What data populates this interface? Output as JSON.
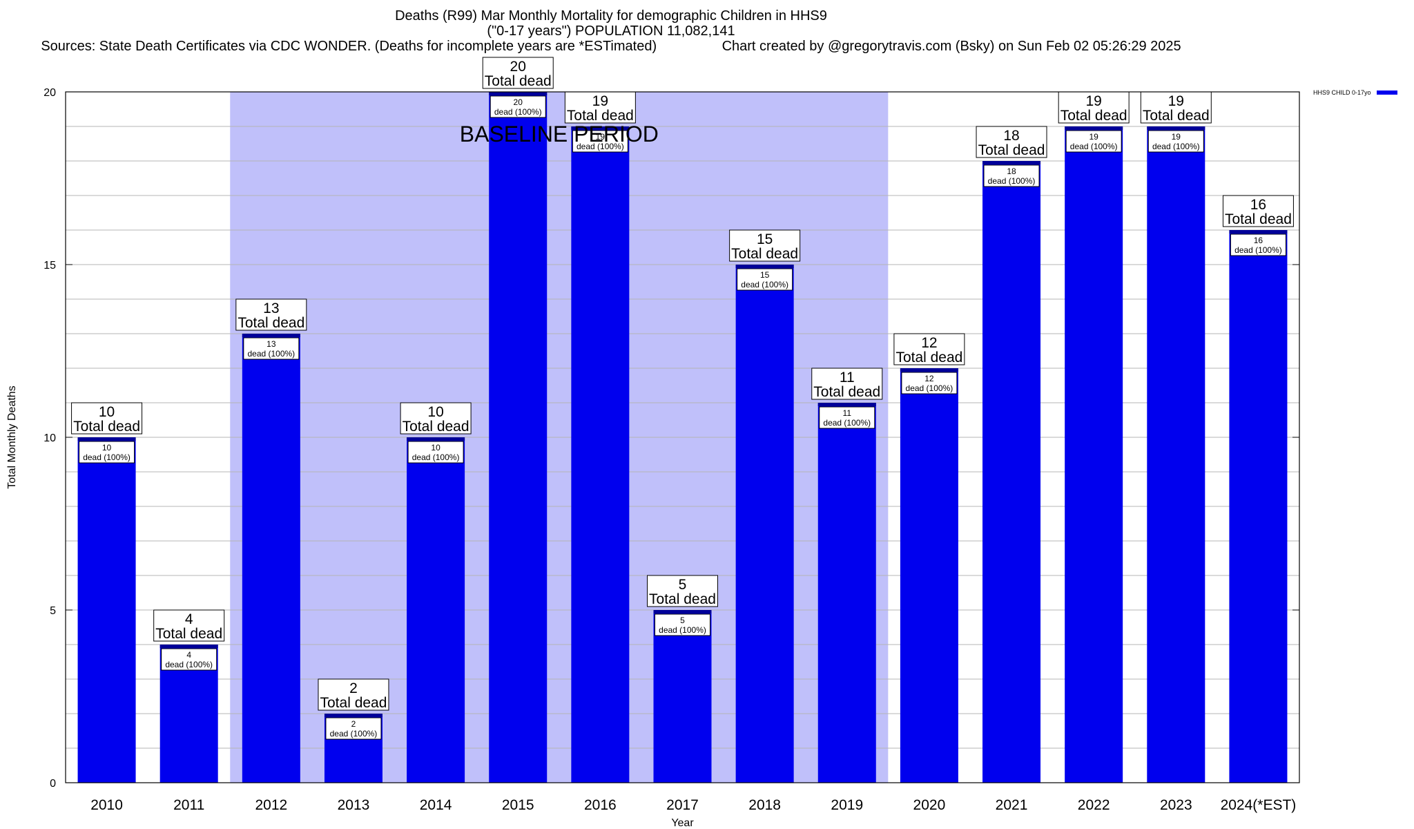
{
  "chart_data": {
    "type": "bar",
    "title_lines": [
      "Deaths (R99) Mar Monthly Mortality for demographic Children in HHS9",
      "(\"0-17 years\") POPULATION 11,082,141",
      "Sources: State Death Certificates via CDC WONDER. (Deaths for incomplete years are *ESTimated)                 Chart created by @gregorytravis.com (Bsky) on Sun Feb 02 05:26:29 2025"
    ],
    "xlabel": "Year",
    "ylabel": "Total Monthly Deaths",
    "ylim": [
      0,
      20
    ],
    "yticks": [
      0,
      5,
      10,
      15,
      20
    ],
    "grid": true,
    "categories": [
      "2010",
      "2011",
      "2012",
      "2013",
      "2014",
      "2015",
      "2016",
      "2017",
      "2018",
      "2019",
      "2020",
      "2021",
      "2022",
      "2023",
      "2024(*EST)"
    ],
    "series": [
      {
        "name": "HHS9 CHILD 0-17yo",
        "color": "#0000ee",
        "values": [
          10,
          4,
          13,
          2,
          10,
          20,
          19,
          5,
          15,
          11,
          12,
          18,
          19,
          19,
          16
        ],
        "labels": [
          "10\ndead (100%)",
          "4\ndead (100%)",
          "13\ndead (100%)",
          "2\ndead (100%)",
          "10\ndead (100%)",
          "20\ndead (100%)",
          "19\ndead (100%)",
          "5\ndead (100%)",
          "15\ndead (100%)",
          "11\ndead (100%)",
          "12\ndead (100%)",
          "18\ndead (100%)",
          "19\ndead (100%)",
          "19\ndead (100%)",
          "16\ndead (100%)"
        ]
      }
    ],
    "total_labels": [
      "10\nTotal dead",
      "4\nTotal dead",
      "13\nTotal dead",
      "2\nTotal dead",
      "10\nTotal dead",
      "20\nTotal dead",
      "19\nTotal dead",
      "5\nTotal dead",
      "15\nTotal dead",
      "11\nTotal dead",
      "12\nTotal dead",
      "18\nTotal dead",
      "19\nTotal dead",
      "19\nTotal dead",
      "16\nTotal dead"
    ],
    "baseline": {
      "label": "BASELINE PERIOD",
      "start": "2012",
      "end": "2019",
      "color": "#c0c0fa"
    },
    "legend": {
      "position": "top-right",
      "label": "HHS9 CHILD 0-17yo",
      "color": "#0000ee"
    }
  }
}
